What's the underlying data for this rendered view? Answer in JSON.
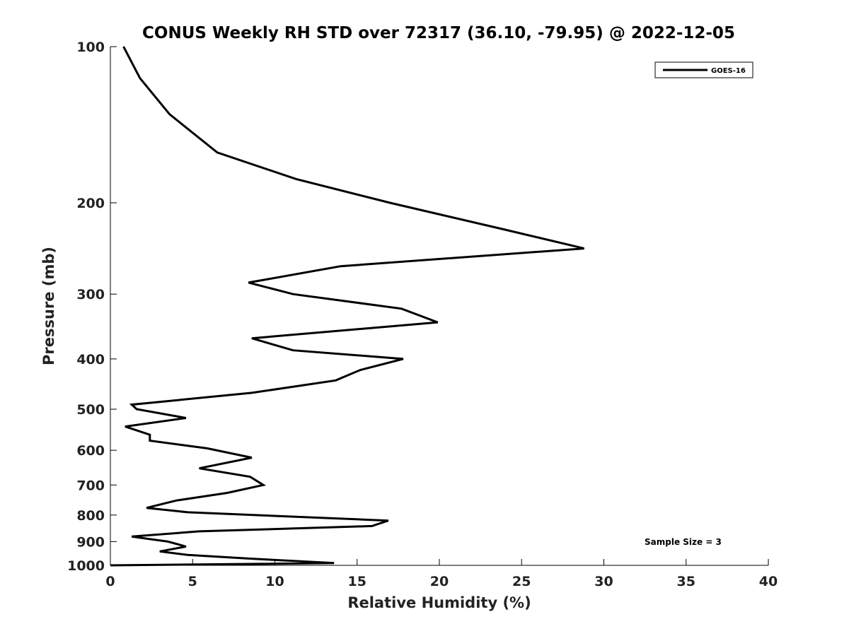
{
  "chart_data": {
    "type": "line",
    "title": "CONUS Weekly RH STD over 72317 (36.10, -79.95) @ 2022-12-05",
    "xlabel": "Relative Humidity (%)",
    "ylabel": "Pressure (mb)",
    "xlim": [
      0,
      40
    ],
    "ylim": [
      1000,
      100
    ],
    "yscale": "log",
    "xticks": [
      "0",
      "5",
      "10",
      "15",
      "20",
      "25",
      "30",
      "35",
      "40"
    ],
    "yticks": [
      "100",
      "200",
      "300",
      "400",
      "500",
      "600",
      "700",
      "800",
      "900",
      "1000"
    ],
    "grid": false,
    "legend": {
      "position": "top-right",
      "entries": [
        "GOES-16"
      ]
    },
    "annotation": "Sample Size = 3",
    "series": [
      {
        "name": "GOES-16",
        "color": "#000000",
        "x": [
          0.8,
          1.8,
          3.6,
          6.5,
          11.3,
          17.0,
          23.9,
          28.8,
          14.0,
          8.4,
          11.1,
          17.7,
          19.9,
          8.6,
          11.1,
          17.8,
          15.2,
          13.7,
          8.6,
          1.3,
          1.6,
          4.6,
          0.9,
          2.4,
          2.4,
          5.9,
          8.6,
          5.4,
          8.5,
          9.3,
          7.1,
          4.0,
          2.2,
          4.7,
          16.9,
          15.9,
          5.4,
          1.3,
          3.5,
          4.6,
          3.0,
          4.7,
          8.3,
          13.6,
          0.0
        ],
        "y": [
          100,
          115,
          135,
          160,
          180,
          200,
          225,
          245,
          265,
          285,
          300,
          320,
          340,
          365,
          385,
          400,
          420,
          440,
          465,
          490,
          500,
          520,
          540,
          560,
          575,
          595,
          620,
          650,
          675,
          700,
          725,
          750,
          775,
          790,
          820,
          840,
          860,
          880,
          900,
          920,
          940,
          955,
          970,
          990,
          1000
        ]
      }
    ]
  }
}
